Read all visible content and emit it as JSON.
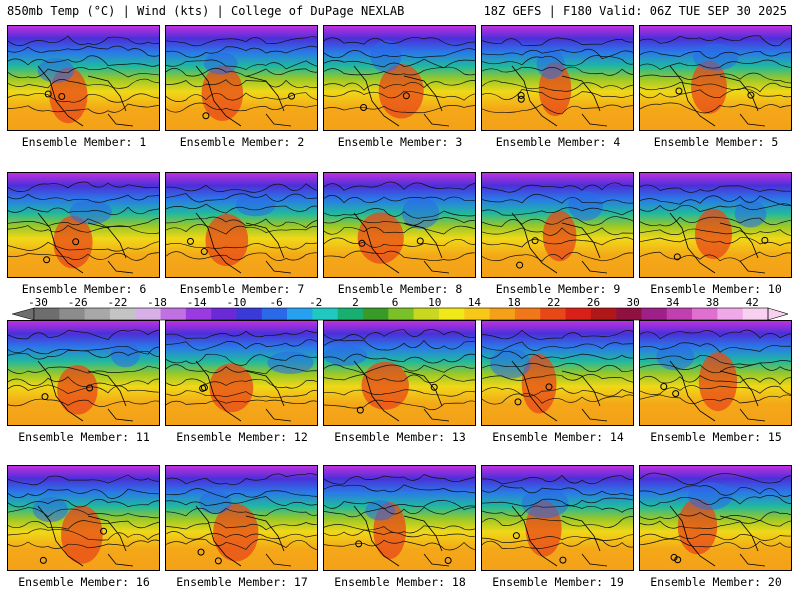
{
  "header": {
    "left": "850mb Temp (°C) | Wind (kts) | College of DuPage NEXLAB",
    "right": "18Z GEFS | F180 Valid: 06Z TUE SEP 30 2025"
  },
  "members": [
    "Ensemble Member: 1",
    "Ensemble Member: 2",
    "Ensemble Member: 3",
    "Ensemble Member: 4",
    "Ensemble Member: 5",
    "Ensemble Member: 6",
    "Ensemble Member: 7",
    "Ensemble Member: 8",
    "Ensemble Member: 9",
    "Ensemble Member: 10",
    "Ensemble Member: 11",
    "Ensemble Member: 12",
    "Ensemble Member: 13",
    "Ensemble Member: 14",
    "Ensemble Member: 15",
    "Ensemble Member: 16",
    "Ensemble Member: 17",
    "Ensemble Member: 18",
    "Ensemble Member: 19",
    "Ensemble Member: 20"
  ],
  "colorbar": {
    "labels": [
      "-30",
      "-26",
      "-22",
      "-18",
      "-14",
      "-10",
      "-6",
      "-2",
      "2",
      "6",
      "10",
      "14",
      "18",
      "22",
      "26",
      "30",
      "34",
      "38",
      "42"
    ],
    "colors": [
      "#6e6e6e",
      "#8c8c8c",
      "#a8a8a8",
      "#c4c4c4",
      "#d8b0e8",
      "#c070e0",
      "#9a3ae0",
      "#6a2ad8",
      "#3a3ad8",
      "#2a6ae8",
      "#28a0f0",
      "#20c8c0",
      "#18b070",
      "#3a9a28",
      "#7ac028",
      "#c8d820",
      "#f0e818",
      "#f8c818",
      "#f4a018",
      "#f07818",
      "#e84818",
      "#d82018",
      "#b01818",
      "#901040",
      "#a0208a",
      "#c040b0",
      "#e070d0",
      "#f0a8e8",
      "#f8d0f0"
    ]
  }
}
